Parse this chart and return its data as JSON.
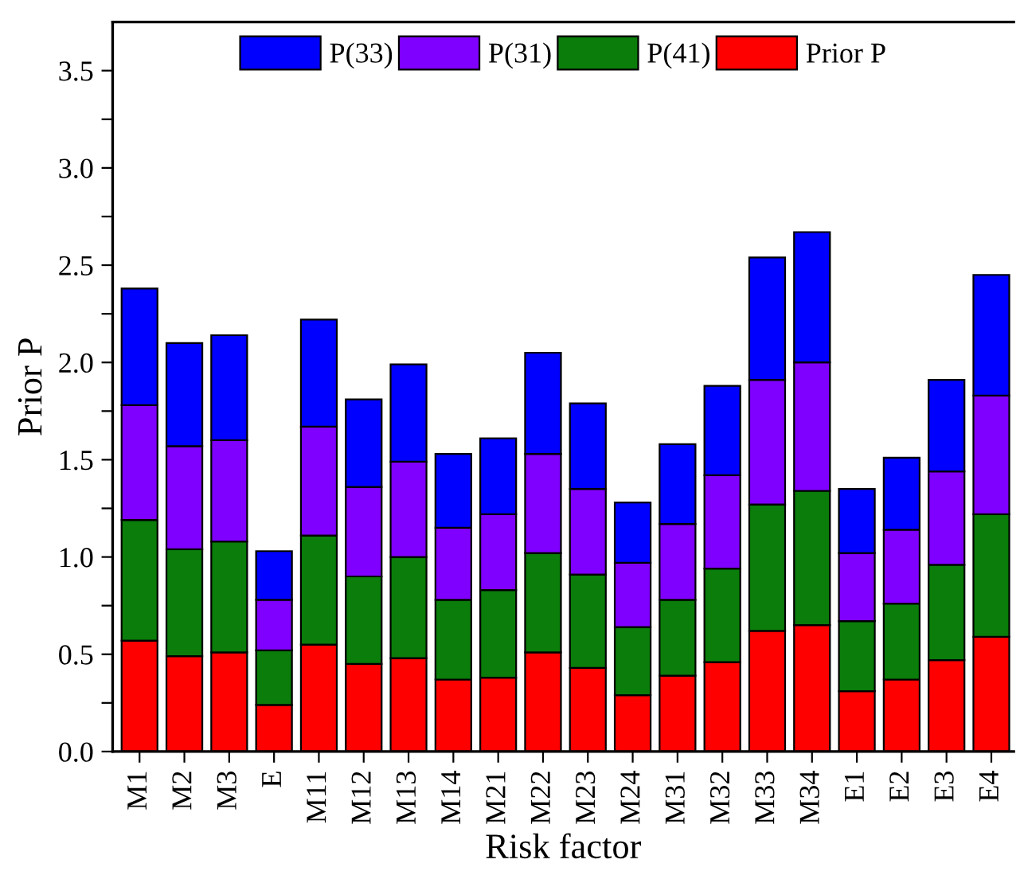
{
  "chart_data": {
    "type": "bar",
    "stacked": true,
    "xlabel": "Risk factor",
    "ylabel": "Prior P",
    "categories": [
      "M1",
      "M2",
      "M3",
      "E",
      "M11",
      "M12",
      "M13",
      "M14",
      "M21",
      "M22",
      "M23",
      "M24",
      "M31",
      "M32",
      "M33",
      "M34",
      "E1",
      "E2",
      "E3",
      "E4"
    ],
    "series": [
      {
        "name": "Prior P",
        "color": "#ff0000",
        "values": [
          0.57,
          0.49,
          0.51,
          0.24,
          0.55,
          0.45,
          0.48,
          0.37,
          0.38,
          0.51,
          0.43,
          0.29,
          0.39,
          0.46,
          0.62,
          0.65,
          0.31,
          0.37,
          0.47,
          0.59
        ]
      },
      {
        "name": "P(41)",
        "color": "#0a7d0a",
        "values": [
          0.62,
          0.55,
          0.57,
          0.28,
          0.56,
          0.45,
          0.52,
          0.41,
          0.45,
          0.51,
          0.48,
          0.35,
          0.39,
          0.48,
          0.65,
          0.69,
          0.36,
          0.39,
          0.49,
          0.63
        ]
      },
      {
        "name": "P(31)",
        "color": "#8000ff",
        "values": [
          0.59,
          0.53,
          0.52,
          0.26,
          0.56,
          0.46,
          0.49,
          0.37,
          0.39,
          0.51,
          0.44,
          0.33,
          0.39,
          0.48,
          0.64,
          0.66,
          0.35,
          0.38,
          0.48,
          0.61
        ]
      },
      {
        "name": "P(33)",
        "color": "#0000ff",
        "values": [
          0.6,
          0.53,
          0.54,
          0.25,
          0.55,
          0.45,
          0.5,
          0.38,
          0.39,
          0.52,
          0.44,
          0.31,
          0.41,
          0.46,
          0.63,
          0.67,
          0.33,
          0.37,
          0.47,
          0.62
        ]
      }
    ],
    "ylim": [
      0,
      3.75
    ],
    "yticks": [
      {
        "value": 0,
        "label": "0.0"
      },
      {
        "value": 0.25,
        "label": null
      },
      0.5,
      {
        "value": 0.75,
        "label": null
      },
      {
        "value": 1,
        "label": "1.0"
      },
      {
        "value": 1.25,
        "label": null
      },
      1.5,
      {
        "value": 1.75,
        "label": null
      },
      {
        "value": 2,
        "label": "2.0"
      },
      {
        "value": 2.25,
        "label": null
      },
      2.5,
      {
        "value": 2.75,
        "label": null
      },
      {
        "value": 3,
        "label": "3.0"
      },
      {
        "value": 3.25,
        "label": null
      },
      3.5
    ],
    "legend": "top",
    "grid": false
  }
}
